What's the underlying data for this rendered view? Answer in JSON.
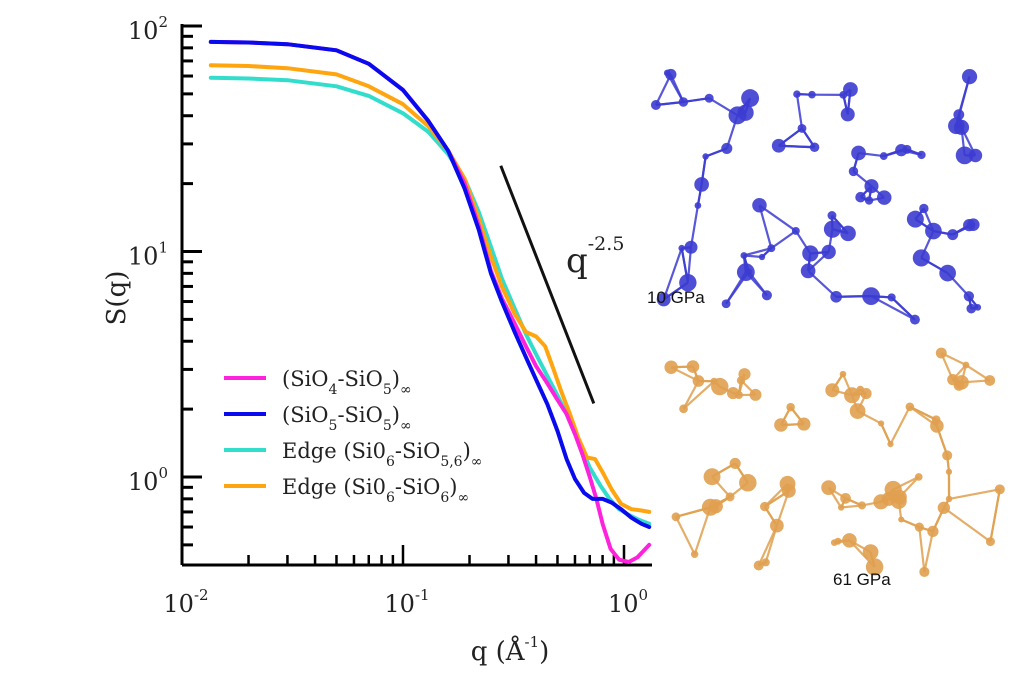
{
  "chart_data": {
    "type": "line",
    "title": "",
    "xlabel": "q (Å",
    "xlabel_exp": "-1",
    "xlabel_close": ")",
    "ylabel": "S(q)",
    "xscale": "log",
    "yscale": "log",
    "xlim": [
      0.01,
      1.35
    ],
    "ylim": [
      0.41,
      100
    ],
    "grid": false,
    "x_ticks": [
      {
        "value": 0.01,
        "base": "10",
        "exp": "-2"
      },
      {
        "value": 0.1,
        "base": "10",
        "exp": "-1"
      },
      {
        "value": 1,
        "base": "10",
        "exp": "0"
      }
    ],
    "y_ticks": [
      {
        "value": 1,
        "base": "10",
        "exp": "0"
      },
      {
        "value": 10,
        "base": "10",
        "exp": "1"
      },
      {
        "value": 100,
        "base": "10",
        "exp": "2"
      }
    ],
    "legend_position": "lower-left",
    "series": [
      {
        "name": "(SiO4-SiO5)∞",
        "label_parts": [
          [
            "(SiO",
            ""
          ],
          [
            "4",
            "sub"
          ],
          [
            "-SiO",
            ""
          ],
          [
            "5",
            "sub"
          ],
          [
            ")",
            ""
          ],
          [
            "∞",
            "sub"
          ]
        ],
        "color": "#ff22dd",
        "points": [
          [
            0.0135,
            85
          ],
          [
            0.02,
            84.5
          ],
          [
            0.03,
            83
          ],
          [
            0.05,
            78
          ],
          [
            0.07,
            68
          ],
          [
            0.1,
            52
          ],
          [
            0.13,
            38
          ],
          [
            0.16,
            28
          ],
          [
            0.19,
            20
          ],
          [
            0.22,
            13
          ],
          [
            0.25,
            8.2
          ],
          [
            0.28,
            6.2
          ],
          [
            0.32,
            4.8
          ],
          [
            0.36,
            3.8
          ],
          [
            0.4,
            3.1
          ],
          [
            0.45,
            2.6
          ],
          [
            0.5,
            2.2
          ],
          [
            0.55,
            1.9
          ],
          [
            0.6,
            1.55
          ],
          [
            0.65,
            1.25
          ],
          [
            0.7,
            1.0
          ],
          [
            0.75,
            0.8
          ],
          [
            0.8,
            0.62
          ],
          [
            0.87,
            0.48
          ],
          [
            0.95,
            0.43
          ],
          [
            1.05,
            0.42
          ],
          [
            1.15,
            0.44
          ],
          [
            1.3,
            0.5
          ]
        ]
      },
      {
        "name": "(SiO5-SiO5)∞",
        "label_parts": [
          [
            "(SiO",
            ""
          ],
          [
            "5",
            "sub"
          ],
          [
            "-SiO",
            ""
          ],
          [
            "5",
            "sub"
          ],
          [
            ")",
            ""
          ],
          [
            "∞",
            "sub"
          ]
        ],
        "color": "#0a0aee",
        "points": [
          [
            0.0135,
            85
          ],
          [
            0.02,
            84.5
          ],
          [
            0.03,
            83
          ],
          [
            0.05,
            78
          ],
          [
            0.07,
            68
          ],
          [
            0.1,
            52
          ],
          [
            0.13,
            38
          ],
          [
            0.16,
            28
          ],
          [
            0.19,
            19
          ],
          [
            0.22,
            12.5
          ],
          [
            0.25,
            8
          ],
          [
            0.28,
            6
          ],
          [
            0.32,
            4.4
          ],
          [
            0.36,
            3.4
          ],
          [
            0.4,
            2.7
          ],
          [
            0.45,
            2.1
          ],
          [
            0.5,
            1.6
          ],
          [
            0.55,
            1.2
          ],
          [
            0.6,
            0.98
          ],
          [
            0.66,
            0.85
          ],
          [
            0.72,
            0.8
          ],
          [
            0.8,
            0.8
          ],
          [
            0.88,
            0.77
          ],
          [
            0.97,
            0.72
          ],
          [
            1.08,
            0.66
          ],
          [
            1.2,
            0.62
          ],
          [
            1.3,
            0.6
          ]
        ]
      },
      {
        "name": "Edge (Si06-SiO5,6)∞",
        "label_parts": [
          [
            "Edge (Si0",
            ""
          ],
          [
            "6",
            "sub"
          ],
          [
            "-SiO",
            ""
          ],
          [
            "5,6",
            "sub"
          ],
          [
            ")",
            ""
          ],
          [
            "∞",
            "sub"
          ]
        ],
        "color": "#33ddcc",
        "points": [
          [
            0.0135,
            59
          ],
          [
            0.02,
            58.5
          ],
          [
            0.03,
            57.5
          ],
          [
            0.05,
            54
          ],
          [
            0.07,
            49
          ],
          [
            0.1,
            41
          ],
          [
            0.13,
            34
          ],
          [
            0.16,
            27
          ],
          [
            0.19,
            21
          ],
          [
            0.22,
            15
          ],
          [
            0.25,
            10.5
          ],
          [
            0.28,
            7.6
          ],
          [
            0.32,
            5.6
          ],
          [
            0.36,
            4.3
          ],
          [
            0.4,
            3.5
          ],
          [
            0.45,
            2.8
          ],
          [
            0.5,
            2.3
          ],
          [
            0.55,
            1.9
          ],
          [
            0.6,
            1.55
          ],
          [
            0.65,
            1.3
          ],
          [
            0.7,
            1.1
          ],
          [
            0.78,
            0.92
          ],
          [
            0.86,
            0.8
          ],
          [
            0.95,
            0.72
          ],
          [
            1.05,
            0.68
          ],
          [
            1.15,
            0.65
          ],
          [
            1.3,
            0.62
          ]
        ]
      },
      {
        "name": "Edge (Si06-SiO6)∞",
        "label_parts": [
          [
            "Edge (Si0",
            ""
          ],
          [
            "6",
            "sub"
          ],
          [
            "-SiO",
            ""
          ],
          [
            "6",
            "sub"
          ],
          [
            ")",
            ""
          ],
          [
            "∞",
            "sub"
          ]
        ],
        "color": "#ffa510",
        "points": [
          [
            0.0135,
            67
          ],
          [
            0.02,
            66.5
          ],
          [
            0.03,
            65
          ],
          [
            0.05,
            61
          ],
          [
            0.07,
            54
          ],
          [
            0.1,
            45
          ],
          [
            0.13,
            36
          ],
          [
            0.16,
            28
          ],
          [
            0.19,
            21
          ],
          [
            0.22,
            14
          ],
          [
            0.25,
            9.5
          ],
          [
            0.28,
            7
          ],
          [
            0.32,
            5.3
          ],
          [
            0.36,
            4.4
          ],
          [
            0.4,
            4.2
          ],
          [
            0.44,
            3.8
          ],
          [
            0.48,
            3.0
          ],
          [
            0.52,
            2.4
          ],
          [
            0.57,
            1.9
          ],
          [
            0.62,
            1.5
          ],
          [
            0.68,
            1.22
          ],
          [
            0.74,
            1.2
          ],
          [
            0.8,
            1.05
          ],
          [
            0.88,
            0.88
          ],
          [
            0.97,
            0.76
          ],
          [
            1.08,
            0.72
          ],
          [
            1.2,
            0.71
          ],
          [
            1.3,
            0.7
          ]
        ]
      }
    ],
    "annotations": [
      {
        "type": "guide-line",
        "label_base": "q",
        "label_exp": "-2.5",
        "color": "#111111",
        "slope": -2.5,
        "from": [
          0.277,
          24
        ],
        "to": [
          0.73,
          2.12
        ]
      }
    ]
  },
  "molecules": [
    {
      "label": "10 GPa",
      "color": "#3c3cd2"
    },
    {
      "label": "61 GPa",
      "color": "#e0a050"
    }
  ]
}
